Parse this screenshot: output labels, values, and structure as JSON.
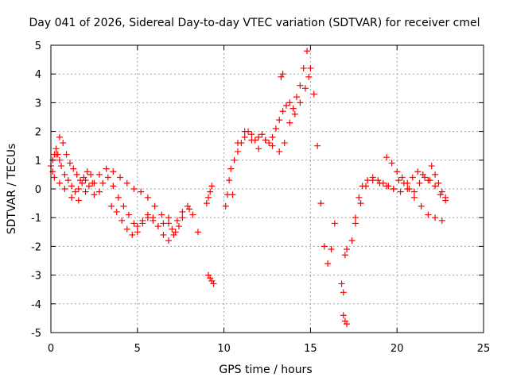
{
  "chart_data": {
    "type": "scatter",
    "marker": "+",
    "title": "Day 041 of 2026, Sidereal Day-to-day VTEC variation (SDTVAR) for receiver cmel",
    "xlabel": "GPS time / hours",
    "ylabel": "SDTVAR / TECUs",
    "xlim": [
      0,
      25
    ],
    "ylim": [
      -5,
      5
    ],
    "xticks": [
      0,
      5,
      10,
      15,
      20,
      25
    ],
    "yticks": [
      -5,
      -4,
      -3,
      -2,
      -1,
      0,
      1,
      2,
      3,
      4,
      5
    ],
    "grid": true,
    "series": [
      {
        "name": "SDTVAR",
        "color": "#ff0000",
        "x": [
          0.0,
          0.1,
          0.2,
          0.3,
          0.4,
          0.5,
          0.6,
          0.8,
          1.0,
          1.2,
          1.4,
          1.6,
          1.8,
          2.0,
          2.2,
          2.5,
          2.8,
          3.0,
          3.3,
          3.6,
          3.9,
          4.2,
          4.5,
          4.8,
          5.0,
          5.3,
          5.6,
          5.9,
          6.2,
          6.5,
          6.8,
          7.0,
          7.3,
          7.6,
          7.9,
          8.2,
          8.5,
          0.1,
          0.3,
          0.5,
          0.7,
          0.9,
          1.1,
          1.3,
          1.5,
          1.7,
          1.9,
          2.1,
          2.3,
          2.5,
          0.2,
          0.5,
          0.8,
          1.2,
          1.6,
          2.0,
          2.4,
          2.8,
          3.2,
          3.6,
          4.0,
          4.4,
          4.8,
          5.2,
          5.6,
          6.0,
          6.4,
          6.8,
          7.2,
          7.6,
          8.0,
          3.5,
          3.8,
          4.1,
          4.4,
          4.7,
          5.0,
          5.3,
          5.6,
          5.9,
          6.2,
          6.5,
          6.8,
          7.1,
          7.4,
          9.0,
          9.1,
          9.2,
          9.3,
          9.1,
          9.2,
          9.3,
          9.4,
          10.1,
          10.2,
          10.3,
          10.4,
          10.6,
          10.8,
          11.0,
          11.2,
          11.4,
          11.6,
          11.8,
          12.0,
          12.2,
          12.4,
          12.6,
          12.8,
          13.0,
          13.2,
          13.4,
          13.6,
          13.8,
          14.0,
          14.2,
          14.4,
          14.6,
          14.8,
          15.0,
          15.2,
          15.4,
          15.6,
          15.8,
          16.0,
          16.2,
          16.4,
          10.5,
          10.8,
          11.2,
          11.6,
          12.0,
          12.4,
          12.8,
          13.2,
          13.5,
          13.8,
          14.1,
          14.4,
          14.7,
          14.9,
          13.3,
          13.4,
          16.8,
          16.9,
          17.0,
          17.1,
          16.9,
          17.0,
          17.1,
          17.4,
          17.6,
          17.8,
          18.0,
          18.3,
          18.6,
          18.9,
          19.2,
          19.5,
          19.8,
          20.1,
          20.4,
          20.7,
          21.0,
          21.3,
          21.6,
          21.9,
          22.2,
          22.5,
          22.8,
          19.4,
          19.7,
          20.0,
          20.3,
          20.6,
          20.9,
          21.2,
          21.5,
          21.8,
          22.0,
          22.2,
          22.4,
          22.6,
          22.8,
          17.6,
          17.9,
          18.2,
          18.6,
          19.0,
          19.4,
          19.8,
          20.2,
          20.6,
          21.0,
          21.4,
          21.8,
          22.2,
          22.6
        ],
        "y": [
          0.8,
          1.0,
          1.2,
          1.4,
          1.2,
          1.0,
          0.8,
          0.5,
          0.3,
          0.1,
          -0.1,
          0.0,
          0.2,
          0.3,
          0.1,
          -0.2,
          -0.1,
          0.2,
          0.4,
          0.1,
          -0.3,
          -0.6,
          -0.9,
          -1.2,
          -1.3,
          -1.1,
          -0.9,
          -1.0,
          -1.3,
          -1.2,
          -1.0,
          -1.4,
          -1.1,
          -0.8,
          -0.6,
          -0.9,
          -1.5,
          0.6,
          1.2,
          1.8,
          1.6,
          1.2,
          0.9,
          0.7,
          0.5,
          0.3,
          0.4,
          0.6,
          0.5,
          0.2,
          0.4,
          0.2,
          0.0,
          -0.3,
          -0.4,
          -0.1,
          0.2,
          0.5,
          0.7,
          0.6,
          0.4,
          0.2,
          0.0,
          -0.1,
          -0.3,
          -0.6,
          -0.9,
          -1.2,
          -1.5,
          -1.0,
          -0.7,
          -0.6,
          -0.8,
          -1.1,
          -1.4,
          -1.6,
          -1.5,
          -1.2,
          -1.0,
          -1.1,
          -1.3,
          -1.6,
          -1.8,
          -1.6,
          -1.3,
          -0.5,
          -0.3,
          -0.1,
          0.1,
          -3.0,
          -3.1,
          -3.2,
          -3.3,
          -0.6,
          -0.2,
          0.3,
          0.7,
          1.0,
          1.3,
          1.6,
          1.8,
          2.0,
          1.9,
          1.7,
          1.8,
          1.9,
          1.7,
          1.6,
          1.8,
          2.1,
          2.4,
          2.7,
          2.9,
          3.0,
          2.8,
          3.2,
          3.6,
          4.2,
          4.8,
          4.2,
          3.3,
          1.5,
          -0.5,
          -2.0,
          -2.6,
          -2.1,
          -1.2,
          -0.2,
          1.6,
          2.0,
          1.7,
          1.4,
          1.7,
          1.5,
          1.3,
          1.6,
          2.3,
          2.6,
          3.0,
          3.5,
          3.9,
          3.9,
          4.0,
          -3.3,
          -3.6,
          -2.3,
          -2.1,
          -4.4,
          -4.6,
          -4.7,
          -1.8,
          -1.0,
          -0.3,
          0.1,
          0.3,
          0.4,
          0.3,
          0.2,
          0.1,
          0.0,
          0.3,
          0.2,
          0.0,
          -0.1,
          0.2,
          0.4,
          0.3,
          0.1,
          -0.2,
          -0.4,
          1.1,
          0.9,
          0.6,
          0.4,
          0.2,
          0.4,
          0.6,
          0.5,
          0.3,
          0.8,
          0.5,
          0.2,
          -0.1,
          -0.3,
          -1.2,
          -0.5,
          0.1,
          0.3,
          0.2,
          0.1,
          0.0,
          -0.1,
          0.0,
          -0.3,
          -0.6,
          -0.9,
          -1.0,
          -1.1
        ]
      }
    ]
  }
}
